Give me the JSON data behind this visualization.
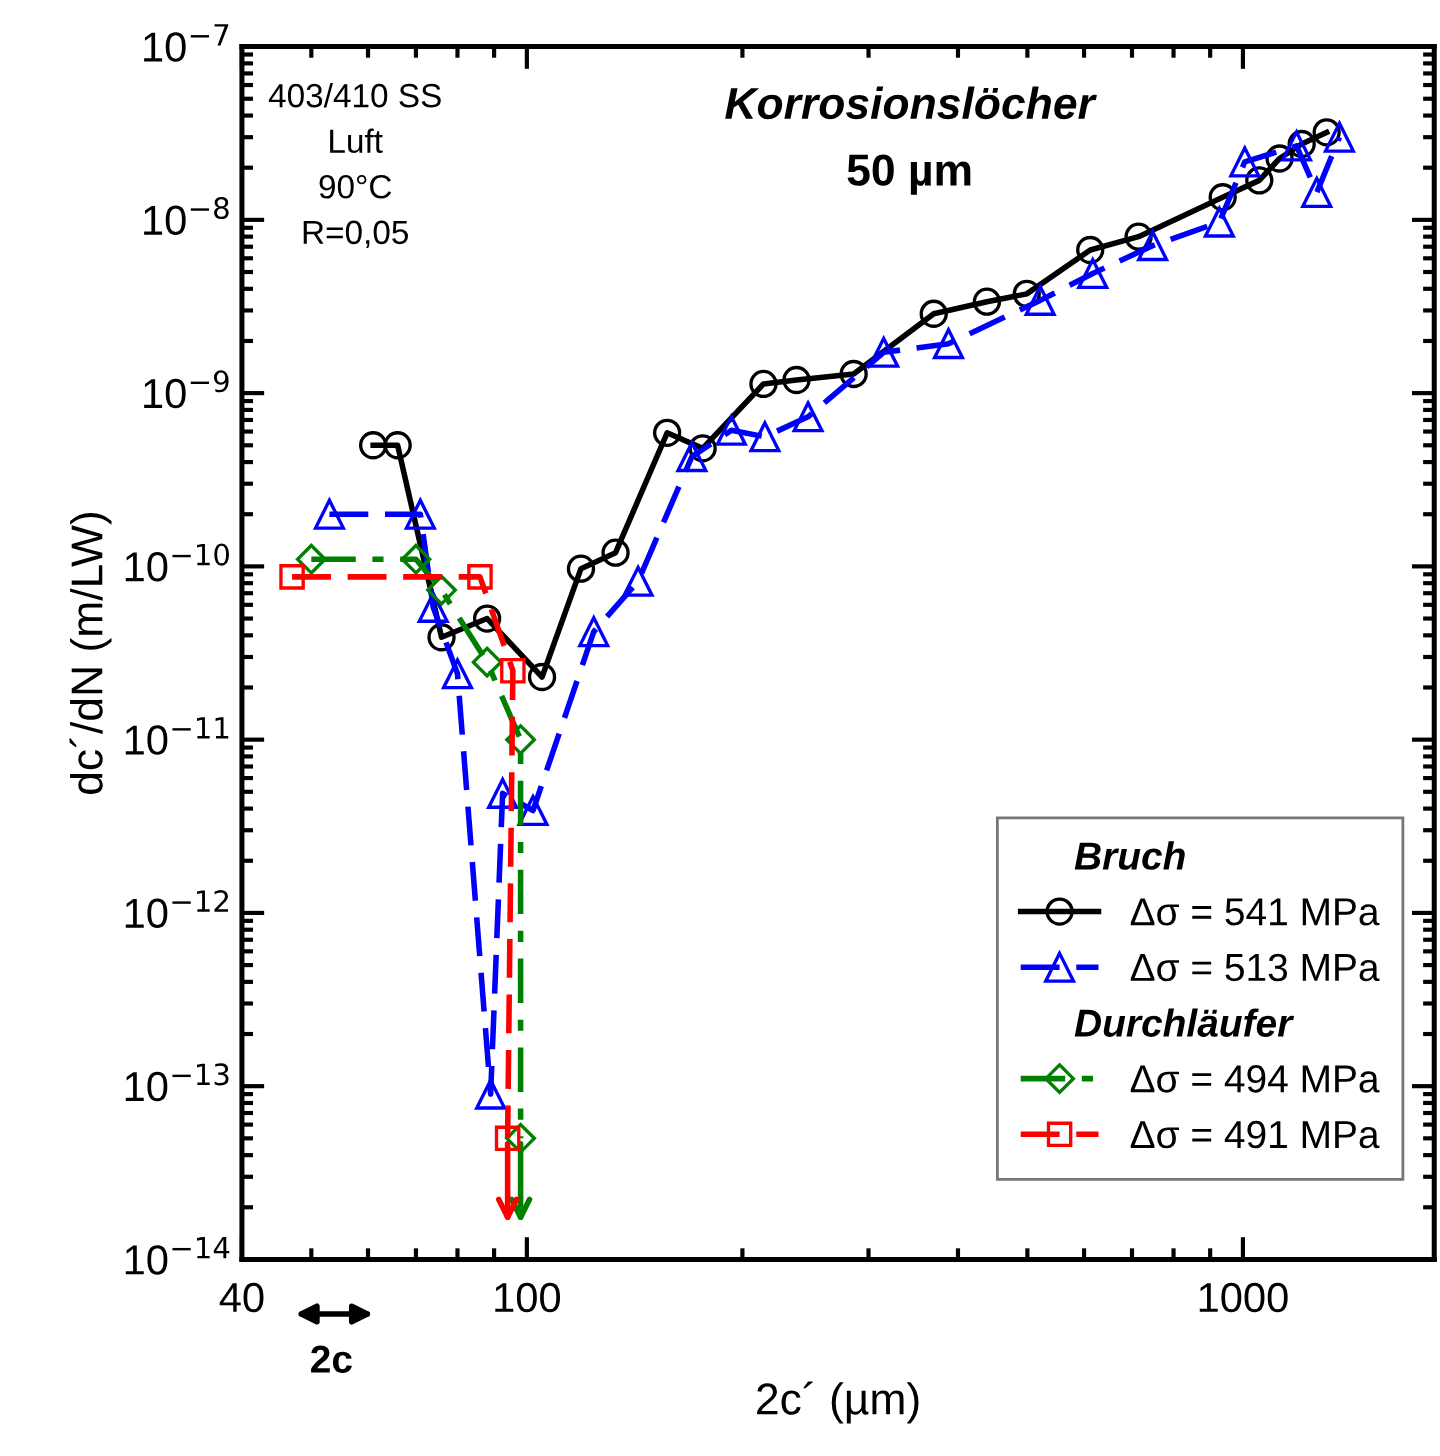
{
  "chart_data": {
    "type": "line",
    "title": "Korrosionslöcher",
    "subtitle": "50 µm",
    "xlabel": "2c´ (µm)",
    "ylabel": "dc´/dN (m/LW)",
    "legend_title": [
      "Bruch",
      "Durchläufer"
    ],
    "annotations": [
      "403/410 SS\nLuft\n90°C\nR=0,05",
      "2c"
    ],
    "log": "xy",
    "grid": false,
    "legend": "bottom right",
    "xlim": [
      40,
      1850
    ],
    "xticks": [
      40,
      100,
      1000
    ],
    "ylim": [
      1e-14,
      1e-07
    ],
    "yticks": [
      {
        "value": 1e-14,
        "label": "10$^{−14}$"
      },
      {
        "value": 1e-13,
        "label": "10$^{−13}$"
      },
      {
        "value": 1e-12,
        "label": "10$^{−12}$"
      },
      {
        "value": 1e-11,
        "label": "10$^{−11}$"
      },
      {
        "value": 1e-10,
        "label": "10$^{−10}$"
      },
      {
        "value": 1e-09,
        "label": "10$^{−9}$"
      },
      {
        "value": 1e-08,
        "label": "10$^{−8}$"
      },
      {
        "value": 1e-07,
        "label": "10$^{−7}$"
      }
    ],
    "series": [
      {
        "name": "Δσ = 541 MPa",
        "color": "#000000",
        "marker": "circle",
        "line_style": "solid",
        "x": [
          61,
          66,
          76,
          88,
          105,
          119,
          133,
          157,
          176,
          214,
          238,
          286,
          370,
          439,
          499,
          612,
          715,
          937,
          1054,
          1125,
          1208,
          1309
        ],
        "values": [
          5e-10,
          5e-10,
          3.9e-11,
          5e-11,
          2.3e-11,
          9.7e-11,
          1.2e-10,
          5.9e-10,
          4.8e-10,
          1.13e-09,
          1.19e-09,
          1.29e-09,
          2.87e-09,
          3.37e-09,
          3.74e-09,
          6.7e-09,
          8e-09,
          1.35e-08,
          1.69e-08,
          2.26e-08,
          2.74e-08,
          3.2e-08
        ]
      },
      {
        "name": "Δσ = 513 MPa",
        "color": "#0000ff",
        "marker": "triangle",
        "line_style": "dashed",
        "x": [
          53,
          71,
          74,
          80,
          89,
          92.5,
          102,
          124,
          143,
          170,
          193,
          215,
          247,
          315,
          388,
          521,
          617,
          748,
          927,
          1006,
          1188,
          1268,
          1364
        ],
        "values": [
          2e-10,
          2e-10,
          5.8e-11,
          2.4e-11,
          9e-14,
          4.9e-12,
          3.9e-12,
          4.2e-11,
          8.2e-11,
          4.3e-10,
          6.1e-10,
          5.6e-10,
          7.3e-10,
          1.72e-09,
          1.93e-09,
          3.43e-09,
          4.9e-09,
          7.1e-09,
          9.7e-09,
          2.16e-08,
          2.67e-08,
          1.44e-08,
          3e-08
        ]
      },
      {
        "name": "Δσ = 494 MPa",
        "color": "#008000",
        "marker": "diamond",
        "line_style": "dashdot",
        "x": [
          50,
          70,
          76,
          88,
          98,
          98
        ],
        "values": [
          1.1e-10,
          1.1e-10,
          7.3e-11,
          2.8e-11,
          1e-11,
          5e-14
        ]
      },
      {
        "name": "Δσ = 491 MPa",
        "color": "#ff0000",
        "marker": "square",
        "line_style": "dashed",
        "x": [
          47,
          86,
          95.6,
          94
        ],
        "values": [
          8.7e-11,
          8.7e-11,
          2.5e-11,
          5e-14
        ]
      }
    ]
  }
}
